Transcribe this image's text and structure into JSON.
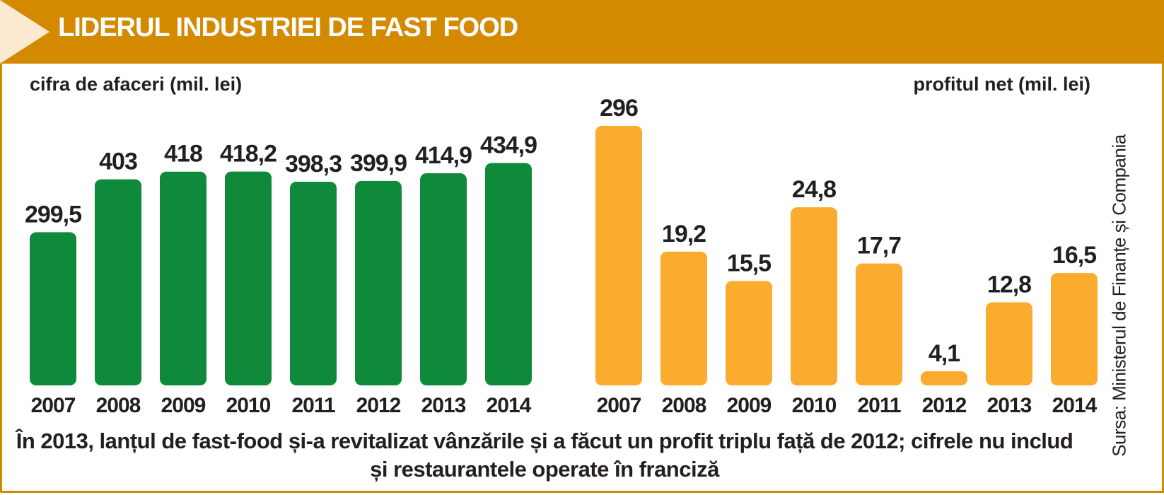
{
  "title": "LIDERUL INDUSTRIEI DE FAST FOOD",
  "caption": "În 2013, lanțul de fast-food și-a revitalizat vânzările și a făcut un profit triplu față de 2012; cifrele nu includ și restaurantele operate în franciză",
  "source": "Sursa: Ministerul de Finanțe și Compania",
  "colors": {
    "header": "#d48a00",
    "turnover": "#0f8a3b",
    "profit": "#fbac2e",
    "text": "#231f20"
  },
  "chart_data": [
    {
      "type": "bar",
      "ylabel": "cifra de afaceri (mil. lei)",
      "color": "#0f8a3b",
      "categories": [
        "2007",
        "2008",
        "2009",
        "2010",
        "2011",
        "2012",
        "2013",
        "2014"
      ],
      "values": [
        299.5,
        403,
        418,
        418.2,
        398.3,
        399.9,
        414.9,
        434.9
      ],
      "data_labels": [
        "299,5",
        "403",
        "418",
        "418,2",
        "398,3",
        "399,9",
        "414,9",
        "434,9"
      ],
      "ylim": [
        0,
        440
      ]
    },
    {
      "type": "bar",
      "ylabel": "profitul net (mil. lei)",
      "color": "#fbac2e",
      "categories": [
        "2007",
        "2008",
        "2009",
        "2010",
        "2011",
        "2012",
        "2013",
        "2014"
      ],
      "values": [
        296,
        19.2,
        15.5,
        24.8,
        17.7,
        4.1,
        12.8,
        16.5
      ],
      "data_labels": [
        "296",
        "19,2",
        "15,5",
        "24,8",
        "17,7",
        "4,1",
        "12,8",
        "16,5"
      ],
      "axis_break": true
    }
  ]
}
